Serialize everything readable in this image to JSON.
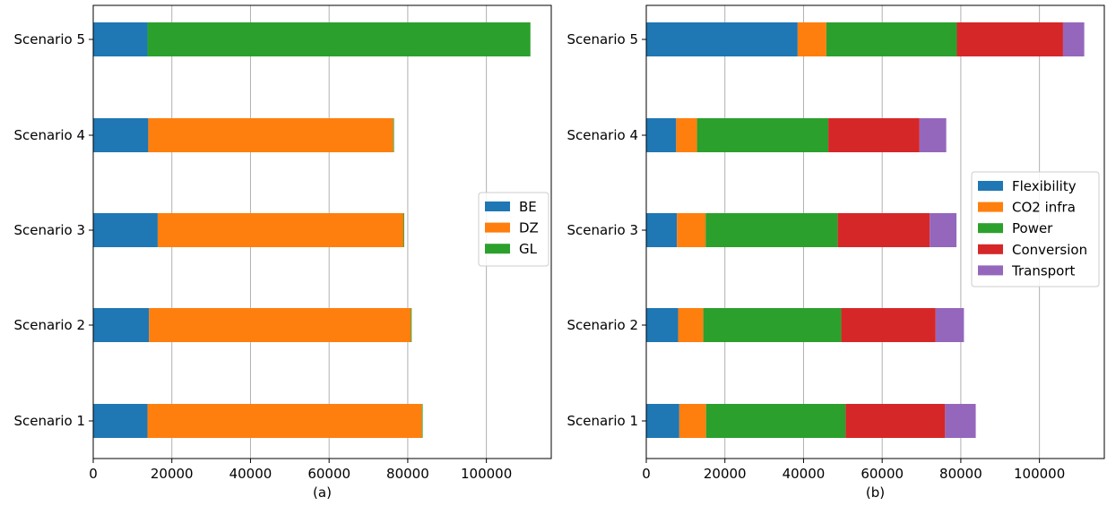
{
  "chart_data": [
    {
      "type": "bar",
      "orientation": "horizontal",
      "stacked": true,
      "xlabel": "(a)",
      "ylabel": "",
      "xlim": [
        0,
        116500
      ],
      "x_ticks": [
        0,
        20000,
        40000,
        60000,
        80000,
        100000
      ],
      "grid": "x",
      "legend": "center-right",
      "categories": [
        "Scenario 1",
        "Scenario 2",
        "Scenario 3",
        "Scenario 4",
        "Scenario 5"
      ],
      "series": [
        {
          "name": "BE",
          "color": "#1f77b4",
          "values": [
            13800,
            14200,
            16400,
            14000,
            13800
          ]
        },
        {
          "name": "DZ",
          "color": "#ff7f0e",
          "values": [
            69800,
            66600,
            62500,
            62300,
            0
          ]
        },
        {
          "name": "GL",
          "color": "#2ca02c",
          "values": [
            200,
            200,
            200,
            200,
            97400
          ]
        }
      ]
    },
    {
      "type": "bar",
      "orientation": "horizontal",
      "stacked": true,
      "xlabel": "(b)",
      "ylabel": "",
      "xlim": [
        0,
        116500
      ],
      "x_ticks": [
        0,
        20000,
        40000,
        60000,
        80000,
        100000
      ],
      "grid": "x",
      "legend": "center-right",
      "categories": [
        "Scenario 1",
        "Scenario 2",
        "Scenario 3",
        "Scenario 4",
        "Scenario 5"
      ],
      "series": [
        {
          "name": "Flexibility",
          "color": "#1f77b4",
          "values": [
            8400,
            8100,
            7800,
            7600,
            38500
          ]
        },
        {
          "name": "CO2 infra",
          "color": "#ff7f0e",
          "values": [
            6800,
            6400,
            7300,
            5300,
            7300
          ]
        },
        {
          "name": "Power",
          "color": "#2ca02c",
          "values": [
            35500,
            35100,
            33600,
            33400,
            33200
          ]
        },
        {
          "name": "Conversion",
          "color": "#d62728",
          "values": [
            25300,
            24000,
            23400,
            23200,
            27000
          ]
        },
        {
          "name": "Transport",
          "color": "#9467bd",
          "values": [
            7800,
            7200,
            6800,
            6800,
            5400
          ]
        }
      ]
    }
  ]
}
